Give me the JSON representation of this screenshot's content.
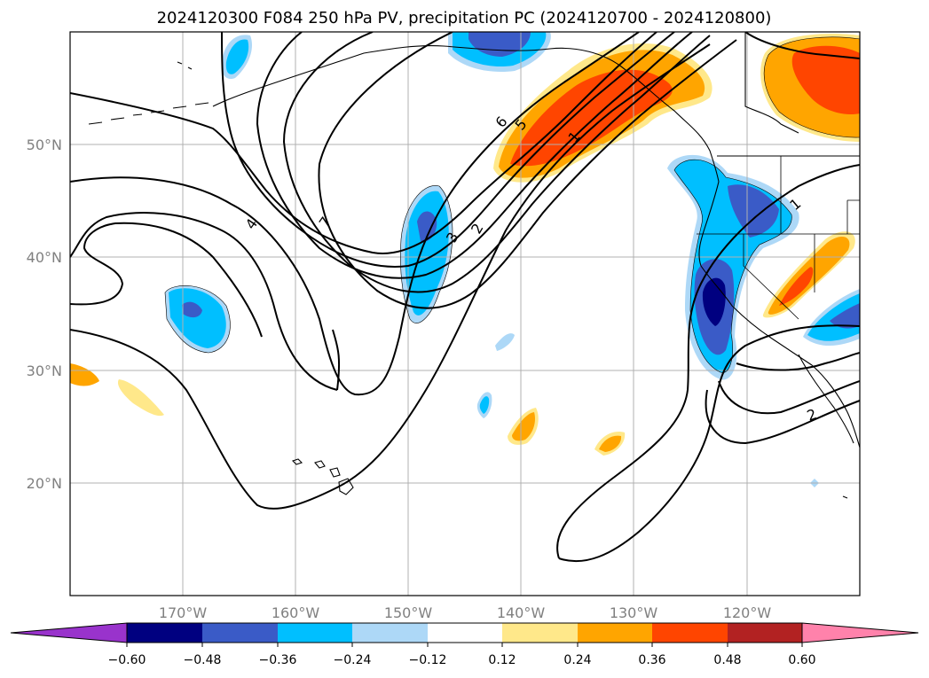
{
  "title": "2024120300 F084 250 hPa PV, precipitation PC (2024120700 - 2024120800)",
  "map": {
    "lon_range": [
      180,
      110
    ],
    "lat_range": [
      10,
      60
    ],
    "grid": true,
    "lat_ticks": [
      {
        "value": 50,
        "label": "50°N"
      },
      {
        "value": 40,
        "label": "40°N"
      },
      {
        "value": 30,
        "label": "30°N"
      },
      {
        "value": 20,
        "label": "20°N"
      }
    ],
    "lon_ticks": [
      {
        "value": 170,
        "label": "170°W"
      },
      {
        "value": 160,
        "label": "160°W"
      },
      {
        "value": 150,
        "label": "150°W"
      },
      {
        "value": 140,
        "label": "140°W"
      },
      {
        "value": 130,
        "label": "130°W"
      },
      {
        "value": 120,
        "label": "120°W"
      }
    ],
    "contour_labels": [
      "4",
      "7",
      "6",
      "5",
      "1",
      "3",
      "2",
      "1",
      "2"
    ]
  },
  "colorbar": {
    "levels": [
      "−0.60",
      "−0.48",
      "−0.36",
      "−0.24",
      "−0.12",
      "0.12",
      "0.24",
      "0.36",
      "0.48",
      "0.60"
    ],
    "colors": {
      "under": "#9933cc",
      "neg_060": "#000080",
      "neg_048": "#3a5bc7",
      "neg_036": "#00bfff",
      "neg_024": "#add8f7",
      "neutral": "#ffffff",
      "pos_012": "#ffe88a",
      "pos_024": "#ffa500",
      "pos_036": "#ff4500",
      "pos_048": "#b22222",
      "over": "#ff82ab"
    }
  }
}
